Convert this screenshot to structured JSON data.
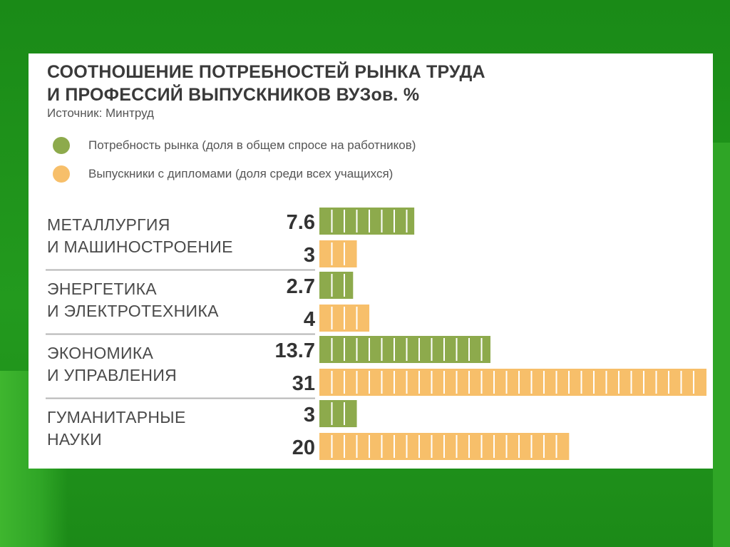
{
  "colors": {
    "demand": "#8daa4c",
    "graduates": "#f7bf6a",
    "divider": "#b5b5b5",
    "text": "#444444"
  },
  "header": {
    "title_line1": "СООТНОШЕНИЕ ПОТРЕБНОСТЕЙ РЫНКА ТРУДА",
    "title_line2": "И ПРОФЕССИЙ ВЫПУСКНИКОВ ВУЗов. %",
    "source": "Источник: Минтруд"
  },
  "chart_data": {
    "type": "bar",
    "title": "СООТНОШЕНИЕ ПОТРЕБНОСТЕЙ РЫНКА ТРУДА И ПРОФЕССИЙ ВЫПУСКНИКОВ ВУЗов. %",
    "categories": [
      [
        "МЕТАЛЛУРГИЯ",
        "И МАШИНОСТРОЕНИЕ"
      ],
      [
        "ЭНЕРГЕТИКА",
        "И ЭЛЕКТРОТЕХНИКА"
      ],
      [
        "ЭКОНОМИКА",
        "И УПРАВЛЕНИЯ"
      ],
      [
        "ГУМАНИТАРНЫЕ",
        "НАУКИ"
      ]
    ],
    "series": [
      {
        "name": "Потребность рынка (доля в общем спросе на работников)",
        "values": [
          7.6,
          2.7,
          13.7,
          3
        ],
        "labels": [
          "7.6",
          "2.7",
          "13.7",
          "3"
        ]
      },
      {
        "name": "Выпускники с дипломами (доля среди всех учащихся)",
        "values": [
          3,
          4,
          31,
          20
        ],
        "labels": [
          "3",
          "4",
          "31",
          "20"
        ]
      }
    ],
    "xlim": [
      0,
      31
    ],
    "legend": "top-left"
  }
}
